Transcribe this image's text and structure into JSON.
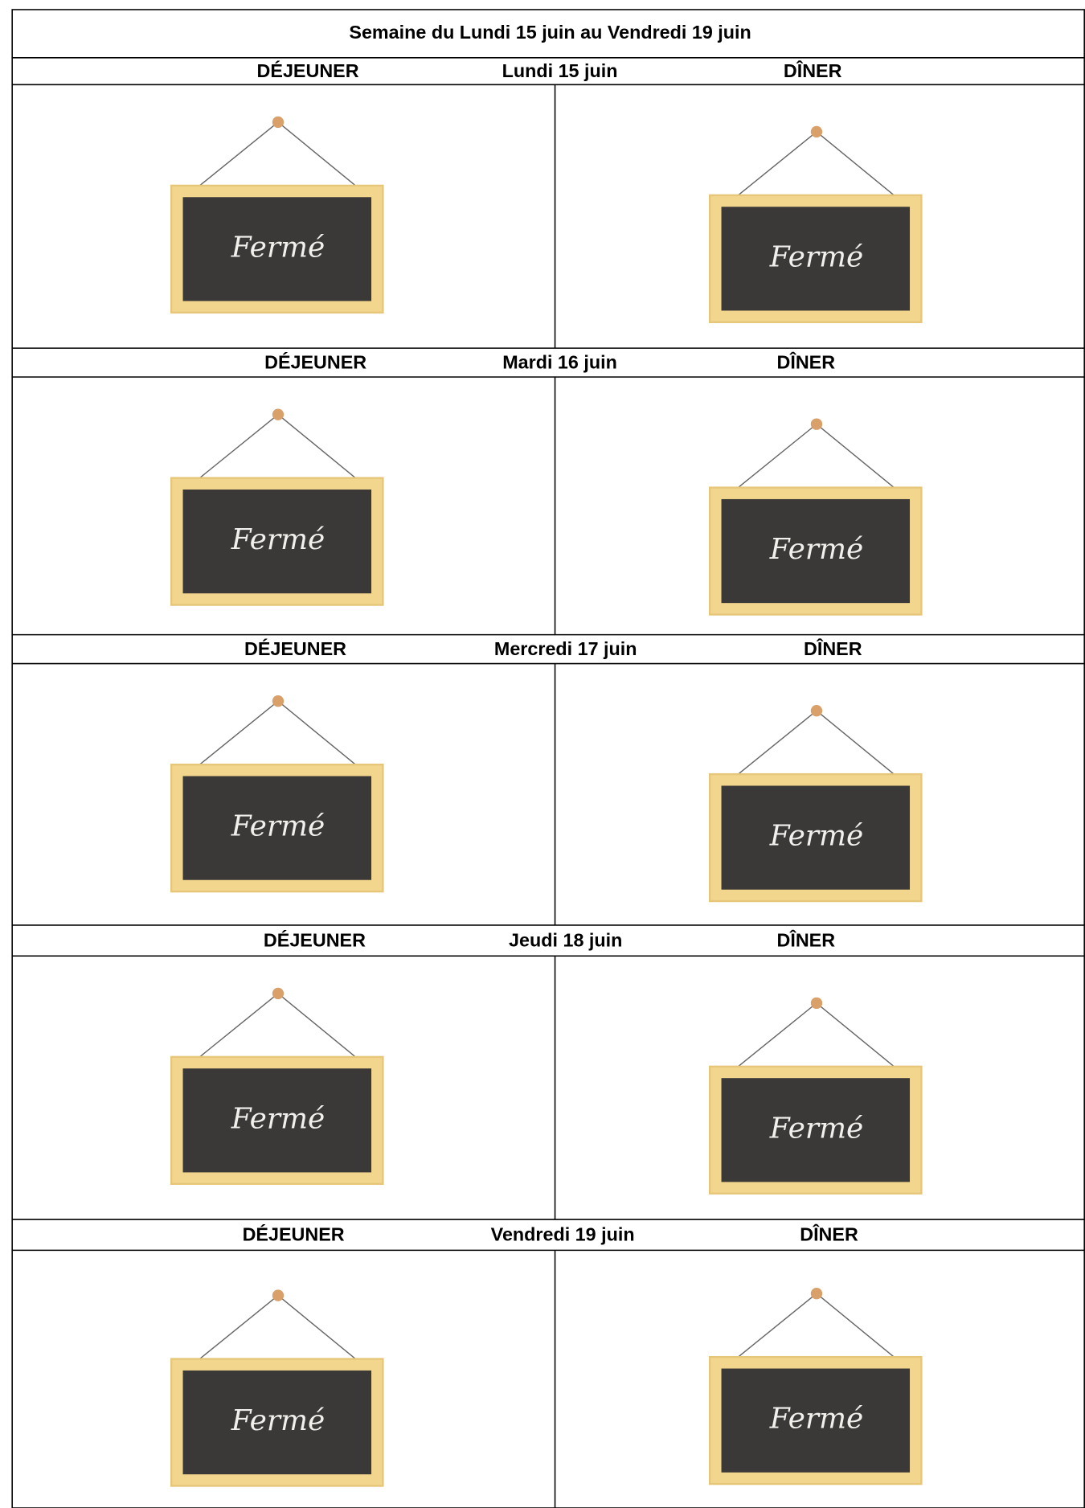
{
  "header": {
    "title": "Semaine du Lundi 15 juin au Vendredi 19 juin"
  },
  "days": [
    {
      "lunch_label": "DÉJEUNER",
      "day": "Lundi 15 juin",
      "dinner_label": "DÎNER",
      "lunch": "Fermé",
      "dinner": "Fermé"
    },
    {
      "lunch_label": "DÉJEUNER",
      "day": "Mardi 16 juin",
      "dinner_label": "DÎNER",
      "lunch": "Fermé",
      "dinner": "Fermé"
    },
    {
      "lunch_label": "DÉJEUNER",
      "day": "Mercredi 17 juin",
      "dinner_label": "DÎNER",
      "lunch": "Fermé",
      "dinner": "Fermé"
    },
    {
      "lunch_label": "DÉJEUNER",
      "day": "Jeudi 18 juin",
      "dinner_label": "DÎNER",
      "lunch": "Fermé",
      "dinner": "Fermé"
    },
    {
      "lunch_label": "DÉJEUNER",
      "day": "Vendredi 19 juin",
      "dinner_label": "DÎNER",
      "lunch": "Fermé",
      "dinner": "Fermé"
    }
  ]
}
